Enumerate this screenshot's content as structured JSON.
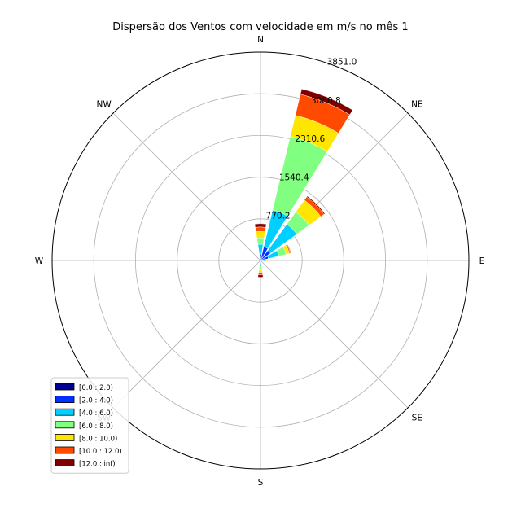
{
  "chart_data": {
    "type": "windrose",
    "title": "Dispersão dos Ventos com velocidade em m/s no mês 1",
    "directions": [
      "N",
      "NNE",
      "NE",
      "ENE",
      "E",
      "ESE",
      "SE",
      "SSE",
      "S",
      "SSW",
      "SW",
      "WSW",
      "W",
      "WNW",
      "NW",
      "NNW"
    ],
    "compass_labels": [
      "N",
      "NE",
      "E",
      "SE",
      "S",
      "SW",
      "W",
      "NW"
    ],
    "rings": [
      770.2,
      1540.4,
      2310.6,
      3080.8,
      3851.0
    ],
    "rlim": [
      0,
      3851.0
    ],
    "legend_location": "lower-left",
    "bins": [
      {
        "label": "[0.0 : 2.0)",
        "color": "#00008f"
      },
      {
        "label": "[2.0 : 4.0)",
        "color": "#0030ff"
      },
      {
        "label": "[4.0 : 6.0)",
        "color": "#00d0ff"
      },
      {
        "label": "[6.0 : 8.0)",
        "color": "#80ff80"
      },
      {
        "label": "[8.0 : 10.0)",
        "color": "#ffe600"
      },
      {
        "label": "[10.0 : 12.0)",
        "color": "#ff4a00"
      },
      {
        "label": "[12.0 : inf)",
        "color": "#800000"
      }
    ],
    "values": [
      [
        40,
        80,
        180,
        120,
        120,
        80,
        60
      ],
      [
        60,
        200,
        700,
        1400,
        400,
        400,
        100
      ],
      [
        30,
        200,
        600,
        280,
        270,
        70,
        20
      ],
      [
        30,
        120,
        200,
        140,
        60,
        20,
        10
      ],
      [
        20,
        30,
        30,
        30,
        20,
        10,
        0
      ],
      [
        0,
        0,
        0,
        0,
        0,
        0,
        0
      ],
      [
        0,
        0,
        0,
        0,
        0,
        0,
        0
      ],
      [
        0,
        0,
        0,
        0,
        0,
        0,
        0
      ],
      [
        10,
        30,
        70,
        60,
        50,
        50,
        40
      ],
      [
        0,
        0,
        0,
        0,
        0,
        0,
        0
      ],
      [
        0,
        0,
        0,
        0,
        0,
        0,
        0
      ],
      [
        0,
        0,
        0,
        0,
        0,
        0,
        0
      ],
      [
        0,
        0,
        0,
        0,
        0,
        0,
        0
      ],
      [
        0,
        0,
        0,
        0,
        0,
        0,
        0
      ],
      [
        0,
        0,
        0,
        0,
        0,
        0,
        0
      ],
      [
        0,
        0,
        0,
        0,
        0,
        0,
        0
      ]
    ],
    "grid": true
  }
}
